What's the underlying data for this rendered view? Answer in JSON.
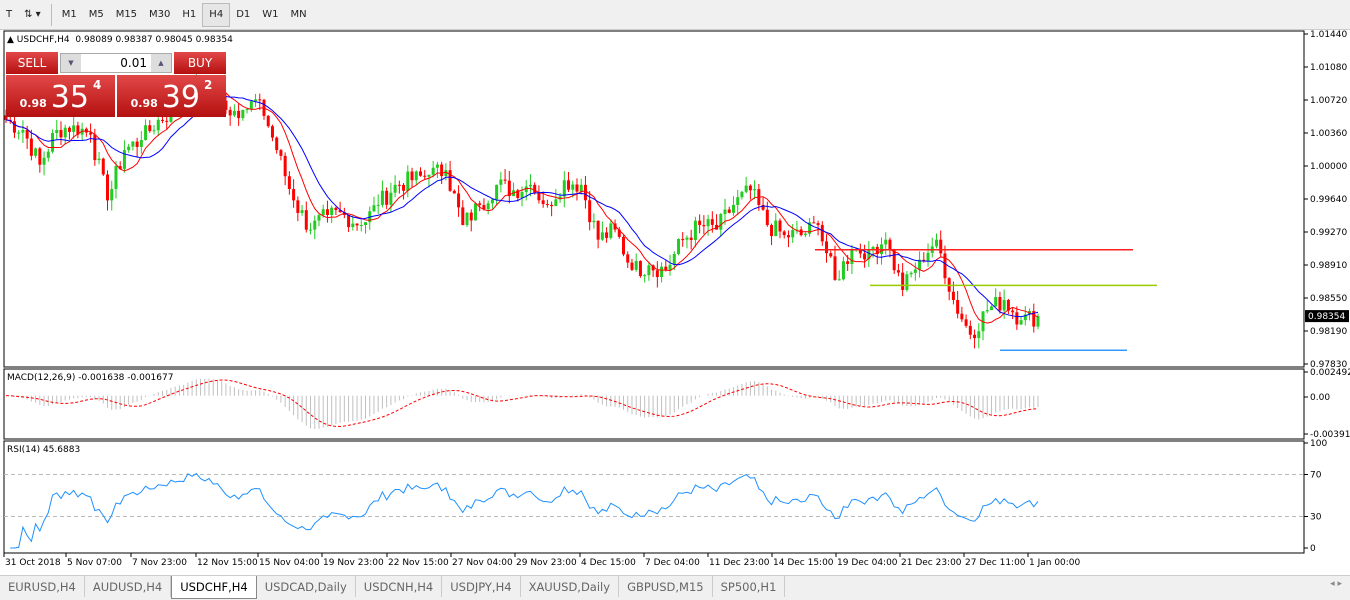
{
  "toolbar": {
    "timeframes": [
      "M1",
      "M5",
      "M15",
      "M30",
      "H1",
      "H4",
      "D1",
      "W1",
      "MN"
    ],
    "active": "H4"
  },
  "chart": {
    "symbol_label": "USDCHF,H4",
    "ohlc": "0.98089 0.98387 0.98045 0.98354",
    "bid_label": "0.98354",
    "price_axis": [
      "1.01440",
      "1.01080",
      "1.00720",
      "1.00360",
      "1.00000",
      "0.99640",
      "0.99270",
      "0.98910",
      "0.98550",
      "0.98190",
      "0.97830"
    ],
    "price_range": [
      0.9783,
      1.0144
    ],
    "time_axis": [
      "31 Oct 2018",
      "5 Nov 07:00",
      "7 Nov 23:00",
      "12 Nov 15:00",
      "15 Nov 04:00",
      "19 Nov 23:00",
      "22 Nov 15:00",
      "27 Nov 04:00",
      "29 Nov 23:00",
      "4 Dec 15:00",
      "7 Dec 04:00",
      "11 Dec 23:00",
      "14 Dec 15:00",
      "19 Dec 04:00",
      "21 Dec 23:00",
      "27 Dec 11:00",
      "1 Jan 00:00"
    ],
    "colors": {
      "bull": "#22cc22",
      "bear": "#ff0000",
      "ma_fast": "#ff0000",
      "ma_slow": "#0000ff",
      "rsi": "#1e90ff",
      "bid_bg": "#000000"
    },
    "closes": [
      1.005,
      1.0039,
      1.0001,
      1.0039,
      1.0044,
      1.0034,
      0.9962,
      1.0017,
      1.0028,
      1.005,
      1.0061,
      1.0083,
      1.0088,
      1.0061,
      1.0061,
      1.0072,
      1.0017,
      0.9962,
      0.993,
      0.9946,
      0.9946,
      0.9935,
      0.9957,
      0.9979,
      0.9984,
      0.999,
      0.9995,
      0.9935,
      0.9957,
      0.9979,
      0.9973,
      0.9979,
      0.9957,
      0.9984,
      0.9979,
      0.9919,
      0.993,
      0.9886,
      0.9891,
      0.9886,
      0.9919,
      0.9935,
      0.993,
      0.9957,
      0.9973,
      0.9935,
      0.9924,
      0.9924,
      0.9935,
      0.9875,
      0.9908,
      0.9908,
      0.9919,
      0.9864,
      0.9897,
      0.9919,
      0.9853,
      0.9815,
      0.9842,
      0.9853,
      0.9831,
      0.98354
    ],
    "levels": [
      {
        "price": 0.9908,
        "color": "#ff2020"
      },
      {
        "price": 0.9869,
        "color": "#99cc00"
      },
      {
        "price": 0.9798,
        "color": "#3399ff"
      }
    ]
  },
  "trade": {
    "sell_label": "SELL",
    "buy_label": "BUY",
    "lot": "0.01",
    "sell_small": "0.98",
    "sell_big": "35",
    "sell_tiny": "4",
    "buy_small": "0.98",
    "buy_big": "39",
    "buy_tiny": "2"
  },
  "macd": {
    "label": "MACD(12,26,9) -0.001638 -0.001677",
    "axis": [
      "0.002492",
      "0.00",
      "-0.003913"
    ],
    "range": [
      -0.003913,
      0.002492
    ]
  },
  "rsi": {
    "label": "RSI(14) 45.6883",
    "axis": [
      "100",
      "70",
      "30",
      "0"
    ]
  },
  "tabs": [
    "EURUSD,H4",
    "AUDUSD,H4",
    "USDCHF,H4",
    "USDCAD,Daily",
    "USDCNH,H4",
    "USDJPY,H4",
    "XAUUSD,Daily",
    "GBPUSD,M15",
    "SP500,H1"
  ],
  "active_tab": "USDCHF,H4"
}
